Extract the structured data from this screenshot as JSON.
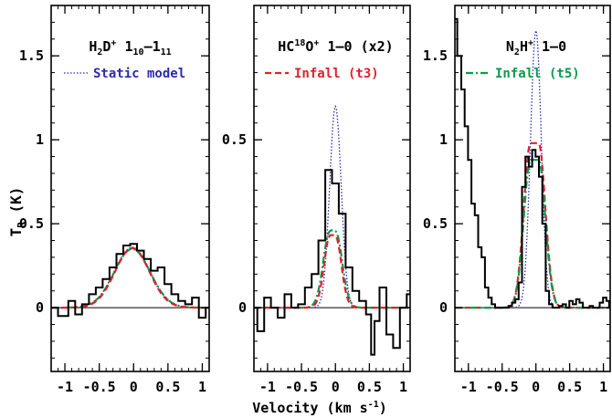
{
  "figure": {
    "y_axis_label": "T",
    "y_axis_label_sub": "R",
    "y_axis_unit": "(K)",
    "x_axis_label": "Velocity (km s",
    "x_axis_label_sup": "-1",
    "x_axis_label_end": ")"
  },
  "colors": {
    "observed": "#000000",
    "static": "#2b2bb0",
    "infall_t3": "#e0202a",
    "infall_t5": "#0a9a4c"
  },
  "chart_data": [
    {
      "type": "line",
      "transition": {
        "species": "H",
        "sub1": "2",
        "mid": "D",
        "sup": "+",
        "trans_a": "1",
        "sub_a": "10",
        "dash": "–",
        "trans_b": "1",
        "sub_b": "11"
      },
      "legend": [
        {
          "label": "Static model",
          "style": "dotted",
          "color": "#2b2bb0"
        }
      ],
      "xlim": [
        -1.2,
        1.1
      ],
      "ylim": [
        -0.38,
        1.8
      ],
      "yticks": [
        0,
        0.5,
        1,
        1.5
      ],
      "ytick_labels": [
        "0",
        "0.5",
        "1",
        "1.5"
      ],
      "xticks": [
        -1,
        -0.5,
        0,
        0.5,
        1
      ],
      "xtick_labels": [
        "-1",
        "-0.5",
        "0",
        "0.5",
        "1"
      ],
      "observed": {
        "x": [
          -1.2,
          -1.0,
          -0.9,
          -0.8,
          -0.7,
          -0.6,
          -0.5,
          -0.4,
          -0.3,
          -0.2,
          -0.1,
          0.0,
          0.1,
          0.2,
          0.3,
          0.4,
          0.5,
          0.6,
          0.7,
          0.8,
          0.9,
          1.0,
          1.1
        ],
        "y": [
          0.0,
          -0.05,
          0.04,
          -0.04,
          0.02,
          0.08,
          0.12,
          0.17,
          0.24,
          0.32,
          0.37,
          0.38,
          0.34,
          0.29,
          0.22,
          0.24,
          0.14,
          0.08,
          0.04,
          0.02,
          0.06,
          -0.06,
          0.0
        ]
      },
      "models": [
        {
          "name": "static",
          "style": "dotted",
          "color": "#2b2bb0",
          "amp": 0.36,
          "center": -0.02,
          "sigma": 0.26
        },
        {
          "name": "infall",
          "style": "dashdot",
          "color": "#0a9a4c",
          "amp": 0.35,
          "center": -0.02,
          "sigma": 0.26
        },
        {
          "name": "infall",
          "style": "dashed",
          "color": "#e0202a",
          "amp": 0.355,
          "center": -0.02,
          "sigma": 0.25
        }
      ]
    },
    {
      "type": "line",
      "transition": {
        "species": "HC",
        "sup1": "18",
        "mid": "O",
        "sup": "+",
        "rest": " 1–0 (x2)"
      },
      "legend": [
        {
          "label": "Infall (t3)",
          "style": "dashed",
          "color": "#e0202a"
        }
      ],
      "xlim": [
        -1.2,
        1.1
      ],
      "ylim": [
        -0.19,
        0.9
      ],
      "yticks": [
        0,
        0.5
      ],
      "ytick_labels": [
        "0",
        "0.5"
      ],
      "xticks": [
        -1,
        -0.5,
        0,
        0.5,
        1
      ],
      "xtick_labels": [
        "-1",
        "-0.5",
        "0",
        "0.5",
        "1"
      ],
      "observed": {
        "x": [
          -1.2,
          -1.1,
          -1.0,
          -0.9,
          -0.8,
          -0.7,
          -0.6,
          -0.5,
          -0.4,
          -0.3,
          -0.2,
          -0.1,
          0.0,
          0.1,
          0.2,
          0.3,
          0.4,
          0.5,
          0.55,
          0.6,
          0.7,
          0.8,
          0.9,
          1.0,
          1.1
        ],
        "y": [
          0.0,
          -0.07,
          0.03,
          0.0,
          -0.03,
          0.04,
          0.0,
          0.01,
          0.06,
          0.1,
          0.2,
          0.41,
          0.37,
          0.28,
          0.12,
          0.05,
          0.02,
          -0.02,
          -0.14,
          -0.04,
          0.06,
          -0.08,
          -0.12,
          0.0,
          0.04
        ]
      },
      "models": [
        {
          "name": "static",
          "style": "dotted",
          "color": "#2b2bb0",
          "amp": 0.6,
          "center": 0.0,
          "sigma": 0.085
        },
        {
          "name": "infall",
          "style": "dashdot",
          "color": "#0a9a4c",
          "amp": 0.32,
          "center": -0.04,
          "sigma": 0.11,
          "dip": 0.07
        },
        {
          "name": "infall",
          "style": "dashed",
          "color": "#e0202a",
          "amp": 0.3,
          "center": -0.04,
          "sigma": 0.1,
          "dip": 0.06
        }
      ]
    },
    {
      "type": "line",
      "transition": {
        "species": "N",
        "sub1": "2",
        "mid": "H",
        "sup": "+",
        "rest": " 1–0"
      },
      "legend": [
        {
          "label": "Infall (t5)",
          "style": "dashdot",
          "color": "#0a9a4c"
        }
      ],
      "xlim": [
        -1.2,
        1.1
      ],
      "ylim": [
        -0.38,
        1.8
      ],
      "yticks": [
        0,
        0.5,
        1,
        1.5
      ],
      "ytick_labels": [
        "0",
        "0.5",
        "1",
        "1.5"
      ],
      "xticks": [
        -1,
        -0.5,
        0,
        0.5,
        1
      ],
      "xtick_labels": [
        "-1",
        "-0.5",
        "0",
        "0.5",
        "1"
      ],
      "observed": {
        "x": [
          -1.2,
          -1.13,
          -1.08,
          -1.03,
          -0.98,
          -0.93,
          -0.88,
          -0.83,
          -0.78,
          -0.73,
          -0.68,
          -0.63,
          -0.58,
          -0.53,
          -0.48,
          -0.43,
          -0.38,
          -0.33,
          -0.28,
          -0.23,
          -0.18,
          -0.13,
          -0.08,
          -0.03,
          0.02,
          0.07,
          0.12,
          0.17,
          0.22,
          0.27,
          0.32,
          0.37,
          0.42,
          0.47,
          0.52,
          0.57,
          0.62,
          0.67,
          0.72,
          0.77,
          0.82,
          0.87,
          0.92,
          0.97,
          1.02,
          1.07,
          1.1
        ],
        "y": [
          1.72,
          1.5,
          1.3,
          1.08,
          0.88,
          0.62,
          0.55,
          0.36,
          0.3,
          0.12,
          0.06,
          0.02,
          0.0,
          0.0,
          0.0,
          0.0,
          0.01,
          0.03,
          0.05,
          0.15,
          0.72,
          0.9,
          0.84,
          0.94,
          0.9,
          0.78,
          0.5,
          0.1,
          0.02,
          0.0,
          0.0,
          0.01,
          0.02,
          0.0,
          0.04,
          0.02,
          0.05,
          0.03,
          0.0,
          0.0,
          0.01,
          0.0,
          0.0,
          0.03,
          0.06,
          0.04,
          0.0
        ]
      },
      "models": [
        {
          "name": "static",
          "style": "dotted",
          "color": "#2b2bb0",
          "amp": 1.65,
          "center": 0.0,
          "sigma": 0.08
        },
        {
          "name": "infall",
          "style": "dashed",
          "color": "#e0202a",
          "amp": 0.98,
          "center": -0.02,
          "sigma": 0.1,
          "flat": 0.06
        },
        {
          "name": "infall",
          "style": "dashdot",
          "color": "#0a9a4c",
          "amp": 0.88,
          "center": -0.02,
          "sigma": 0.1,
          "flat": 0.06
        }
      ]
    }
  ]
}
